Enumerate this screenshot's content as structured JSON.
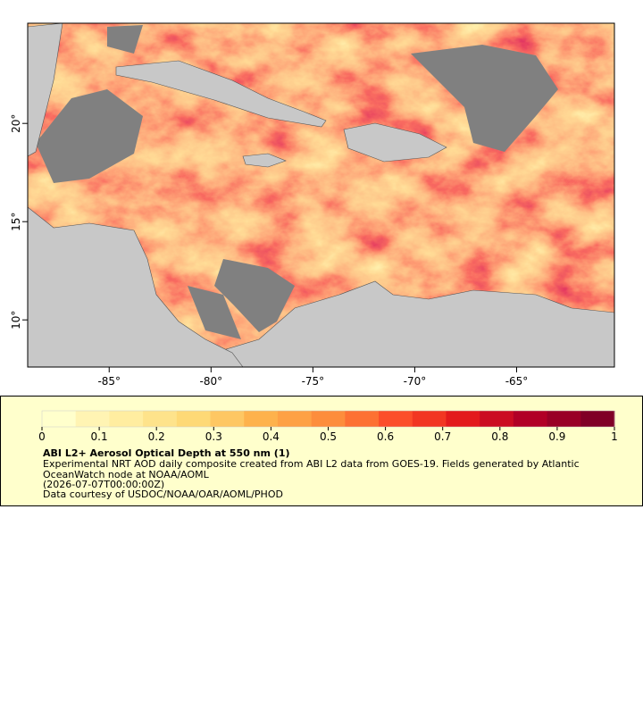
{
  "map": {
    "xlim": [
      -89,
      -60.2
    ],
    "ylim": [
      7.6,
      25.1
    ],
    "xticks": [
      {
        "value": -85,
        "label": "-85°"
      },
      {
        "value": -80,
        "label": "-80°"
      },
      {
        "value": -75,
        "label": "-75°"
      },
      {
        "value": -70,
        "label": "-70°"
      },
      {
        "value": -65,
        "label": "-65°"
      }
    ],
    "yticks": [
      {
        "value": 10,
        "label": "10°"
      },
      {
        "value": 15,
        "label": "15°"
      },
      {
        "value": 20,
        "label": "20°"
      }
    ]
  },
  "legend": {
    "title": "ABI L2+ Aerosol Optical Depth at 550 nm (1)",
    "lines": [
      "Experimental NRT AOD daily composite created from ABI L2 data from GOES-19. Fields generated by Atlantic",
      "OceanWatch node at NOAA/AOML",
      "(2026-07-07T00:00:00Z)",
      "Data courtesy of USDOC/NOAA/OAR/AOML/PHOD"
    ],
    "colorbar": {
      "range": [
        0,
        1
      ],
      "ticks": [
        0,
        0.1,
        0.2,
        0.3,
        0.4,
        0.5,
        0.6,
        0.7,
        0.8,
        0.9,
        1
      ],
      "colors": [
        "#ffffcc",
        "#fff4b3",
        "#ffeda0",
        "#fee38b",
        "#fed976",
        "#fec763",
        "#feb24c",
        "#fea145",
        "#fd8d3c",
        "#fd7133",
        "#fc4e2a",
        "#f23622",
        "#e31a1c",
        "#cb0c22",
        "#b10026",
        "#990026",
        "#800026"
      ]
    }
  }
}
